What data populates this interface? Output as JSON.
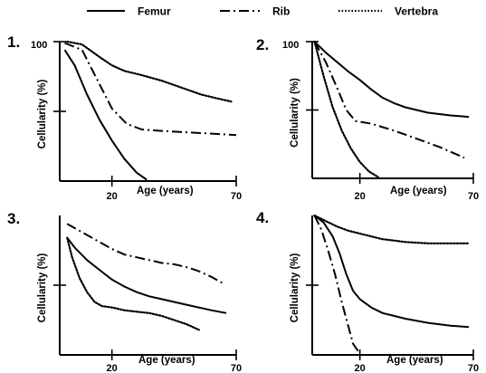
{
  "legend": [
    {
      "name": "Femur",
      "dash": "solid"
    },
    {
      "name": "Rib",
      "dash": "dashdot"
    },
    {
      "name": "Vertebra",
      "dash": "dotted"
    }
  ],
  "chart_data": [
    {
      "type": "line",
      "panel_label": "1.",
      "xlabel": "Age (years)",
      "ylabel": "Cellularity (%)",
      "x_ticks": [
        {
          "value": 20,
          "label": "20"
        },
        {
          "value": 70,
          "label": "70"
        }
      ],
      "y_ticks": [
        {
          "value": 100,
          "label": "100"
        },
        {
          "value": 50,
          "label": ""
        }
      ],
      "xlim": [
        -1,
        70
      ],
      "ylim": [
        0,
        100
      ],
      "series": [
        {
          "name": "Femur",
          "x": [
            1,
            5,
            10,
            15,
            20,
            25,
            30,
            34
          ],
          "y": [
            94,
            83,
            62,
            44,
            29,
            16,
            6,
            1
          ]
        },
        {
          "name": "Rib",
          "x": [
            1,
            8,
            14,
            20,
            26,
            32,
            40,
            50,
            60,
            70
          ],
          "y": [
            99,
            94,
            73,
            52,
            41,
            37,
            36,
            35,
            34,
            33
          ]
        },
        {
          "name": "Vertebra",
          "x": [
            2,
            8,
            15,
            20,
            25,
            32,
            40,
            48,
            56,
            63,
            68
          ],
          "y": [
            100,
            98,
            89,
            83,
            79,
            76,
            72,
            67,
            62,
            59,
            57
          ]
        }
      ]
    },
    {
      "type": "line",
      "panel_label": "2.",
      "xlabel": "Age (years)",
      "ylabel": "Cellularity (%)",
      "x_ticks": [
        {
          "value": 20,
          "label": "20"
        },
        {
          "value": 70,
          "label": "70"
        }
      ],
      "y_ticks": [
        {
          "value": 100,
          "label": "100"
        },
        {
          "value": 50,
          "label": ""
        }
      ],
      "xlim": [
        -1,
        70
      ],
      "ylim": [
        0,
        100
      ],
      "series": [
        {
          "name": "Femur",
          "x": [
            0,
            5,
            10,
            15,
            20,
            25,
            30,
            35,
            40,
            50,
            60,
            68
          ],
          "y": [
            100,
            92,
            85,
            78,
            72,
            65,
            59,
            55,
            52,
            48,
            46,
            45
          ]
        },
        {
          "name": "Rib",
          "x": [
            0,
            5,
            10,
            14,
            18,
            25,
            35,
            45,
            55,
            62,
            66
          ],
          "y": [
            100,
            85,
            66,
            50,
            42,
            40,
            35,
            29,
            23,
            18,
            15
          ]
        },
        {
          "name": "Vertebra",
          "x": [
            0,
            4,
            8,
            12,
            16,
            20,
            24,
            28
          ],
          "y": [
            100,
            75,
            52,
            35,
            22,
            12,
            5,
            1
          ]
        }
      ]
    },
    {
      "type": "line",
      "panel_label": "3.",
      "xlabel": "Age (years)",
      "ylabel": "Cellularity (%)",
      "x_ticks": [
        {
          "value": 20,
          "label": "20"
        },
        {
          "value": 70,
          "label": "70"
        }
      ],
      "y_ticks": [
        {
          "value": 50,
          "label": ""
        }
      ],
      "xlim": [
        -1,
        70
      ],
      "ylim": [
        0,
        100
      ],
      "series": [
        {
          "name": "Femur",
          "x": [
            2,
            5,
            10,
            15,
            20,
            25,
            30,
            35,
            40,
            50,
            60,
            66
          ],
          "y": [
            84,
            77,
            68,
            61,
            54,
            49,
            45,
            42,
            40,
            36,
            32,
            30
          ]
        },
        {
          "name": "Rib",
          "x": [
            2,
            8,
            15,
            20,
            25,
            30,
            35,
            40,
            45,
            50,
            55,
            60,
            65
          ],
          "y": [
            94,
            88,
            81,
            76,
            72,
            70,
            68,
            66,
            65,
            63,
            60,
            56,
            51
          ]
        },
        {
          "name": "Vertebra",
          "x": [
            2,
            4,
            7,
            10,
            13,
            16,
            20,
            25,
            30,
            35,
            40,
            45,
            50,
            55
          ],
          "y": [
            84,
            70,
            55,
            45,
            38,
            35,
            34,
            32,
            31,
            30,
            28,
            25,
            22,
            18
          ]
        }
      ]
    },
    {
      "type": "line",
      "panel_label": "4.",
      "xlabel": "Age (years)",
      "ylabel": "Cellularity (%)",
      "x_ticks": [
        {
          "value": 20,
          "label": "20"
        },
        {
          "value": 70,
          "label": "70"
        }
      ],
      "y_ticks": [
        {
          "value": 50,
          "label": ""
        }
      ],
      "xlim": [
        -1,
        70
      ],
      "ylim": [
        0,
        100
      ],
      "series": [
        {
          "name": "Femur",
          "x": [
            0,
            4,
            8,
            11,
            14,
            17,
            20,
            25,
            30,
            35,
            40,
            50,
            60,
            68
          ],
          "y": [
            100,
            95,
            85,
            73,
            58,
            46,
            40,
            34,
            30,
            28,
            26,
            23,
            21,
            20
          ]
        },
        {
          "name": "Rib",
          "x": [
            0,
            3,
            6,
            9,
            12,
            15,
            17,
            20
          ],
          "y": [
            100,
            90,
            75,
            58,
            38,
            20,
            8,
            1
          ]
        },
        {
          "name": "Vertebra",
          "x": [
            0,
            5,
            10,
            15,
            20,
            25,
            30,
            35,
            40,
            50,
            60,
            68
          ],
          "y": [
            100,
            96,
            92,
            89,
            87,
            85,
            83,
            82,
            81,
            80,
            80,
            80
          ]
        }
      ]
    }
  ]
}
